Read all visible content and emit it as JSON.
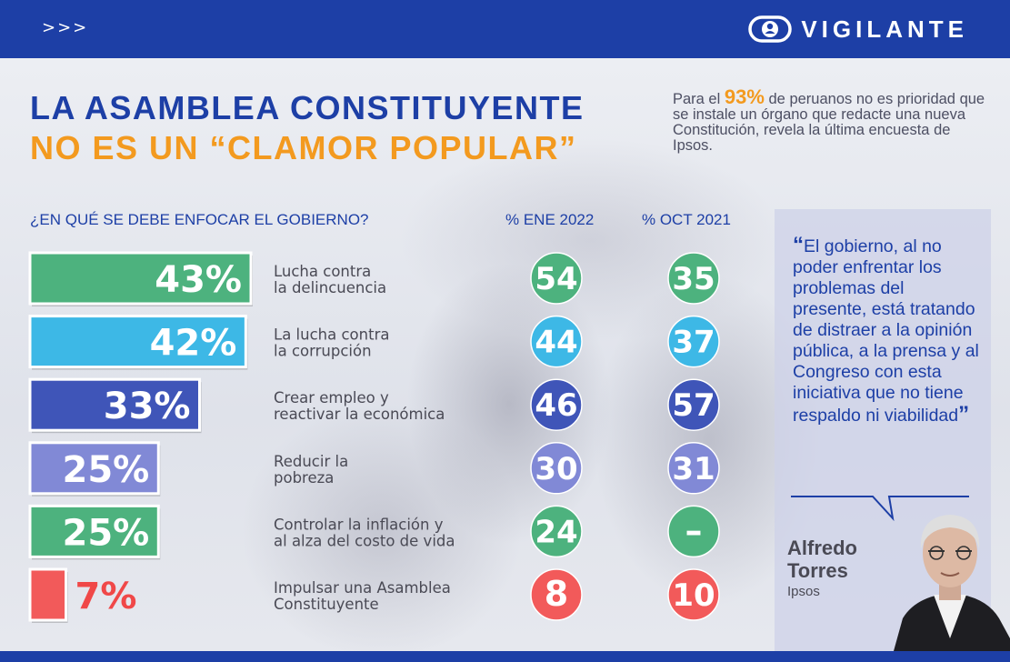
{
  "header": {
    "arrows": ">>>",
    "brand": "VIGILANTE"
  },
  "title": {
    "line1": "LA ASAMBLEA CONSTITUYENTE",
    "line2": "NO ES UN “CLAMOR POPULAR”"
  },
  "intro": {
    "pre": "Para el ",
    "highlight": "93%",
    "post": " de peruanos no es prioridad que se instale un órgano que redacte una nueva Constitución, revela la última encuesta de Ipsos."
  },
  "chart_data": {
    "type": "bar",
    "question": "¿EN QUÉ SE DEBE ENFOCAR EL GOBIERNO?",
    "column_headers": [
      "% ENE 2022",
      "% OCT 2021"
    ],
    "xlim": [
      0,
      43
    ],
    "categories": [
      "Lucha contra la delincuencia",
      "La lucha contra la corrupción",
      "Crear empleo y reactivar la económica",
      "Reducir la pobreza",
      "Controlar la inflación y al alza del costo de vida",
      "Impulsar una Asamblea Constituyente"
    ],
    "category_lines": [
      [
        "Lucha contra",
        "la delincuencia"
      ],
      [
        "La lucha contra",
        "la corrupción"
      ],
      [
        "Crear empleo y",
        "reactivar la económica"
      ],
      [
        "Reducir la",
        "pobreza"
      ],
      [
        "Controlar la inflación y",
        "al alza del costo de vida"
      ],
      [
        "Impulsar una Asamblea",
        "Constituyente"
      ]
    ],
    "values": [
      43,
      42,
      33,
      25,
      25,
      7
    ],
    "value_labels": [
      "43%",
      "42%",
      "33%",
      "25%",
      "25%",
      "7%"
    ],
    "colors": [
      "#4db27e",
      "#3db8e6",
      "#3f55b8",
      "#8189d6",
      "#4db27e",
      "#f25a5a"
    ],
    "value_label_colors": [
      "#ffffff",
      "#ffffff",
      "#ffffff",
      "#ffffff",
      "#ffffff",
      "#f04848"
    ],
    "circle_colors": [
      "#4db27e",
      "#3db8e6",
      "#3f55b8",
      "#8189d6",
      "#4db27e",
      "#f25a5a"
    ],
    "ene_2022": [
      "54",
      "44",
      "46",
      "30",
      "24",
      "8"
    ],
    "oct_2021": [
      "35",
      "37",
      "57",
      "31",
      "–",
      "10"
    ]
  },
  "quote": {
    "open_mark": "“",
    "text": "El gobierno, al no poder enfrentar los problemas del presente, está tratando de distraer a la opinión pública, a la prensa y al Congreso con esta iniciativa que no tiene respaldo ni viabilidad",
    "close_mark": "”",
    "author_first": "Alfredo",
    "author_last": "Torres",
    "org": "Ipsos",
    "photo_icon": "person-portrait-icon"
  },
  "colors": {
    "brand_blue": "#1d3fa6",
    "accent_orange": "#f39a1f"
  }
}
